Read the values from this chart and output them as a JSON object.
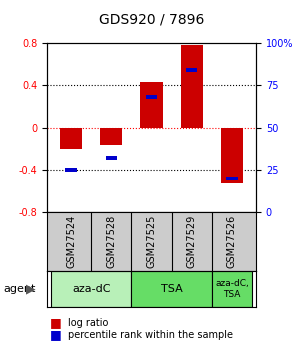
{
  "title": "GDS920 / 7896",
  "samples": [
    "GSM27524",
    "GSM27528",
    "GSM27525",
    "GSM27529",
    "GSM27526"
  ],
  "log_ratios": [
    -0.2,
    -0.16,
    0.43,
    0.78,
    -0.52
  ],
  "percentile_ranks": [
    25,
    32,
    68,
    84,
    20
  ],
  "ylim_left": [
    -0.8,
    0.8
  ],
  "ylim_right": [
    0,
    100
  ],
  "yticks_left": [
    -0.8,
    -0.4,
    0.0,
    0.4,
    0.8
  ],
  "ytick_labels_left": [
    "-0.8",
    "-0.4",
    "0",
    "0.4",
    "0.8"
  ],
  "yticks_right": [
    0,
    25,
    50,
    75,
    100
  ],
  "ytick_labels_right": [
    "0",
    "25",
    "50",
    "75",
    "100%"
  ],
  "bar_color": "#cc0000",
  "square_color": "#0000cc",
  "title_fontsize": 10,
  "tick_fontsize": 7,
  "sample_bg_color": "#cccccc",
  "agent_color_1": "#b8f0b8",
  "agent_color_2": "#66dd66",
  "background_color": "#ffffff"
}
